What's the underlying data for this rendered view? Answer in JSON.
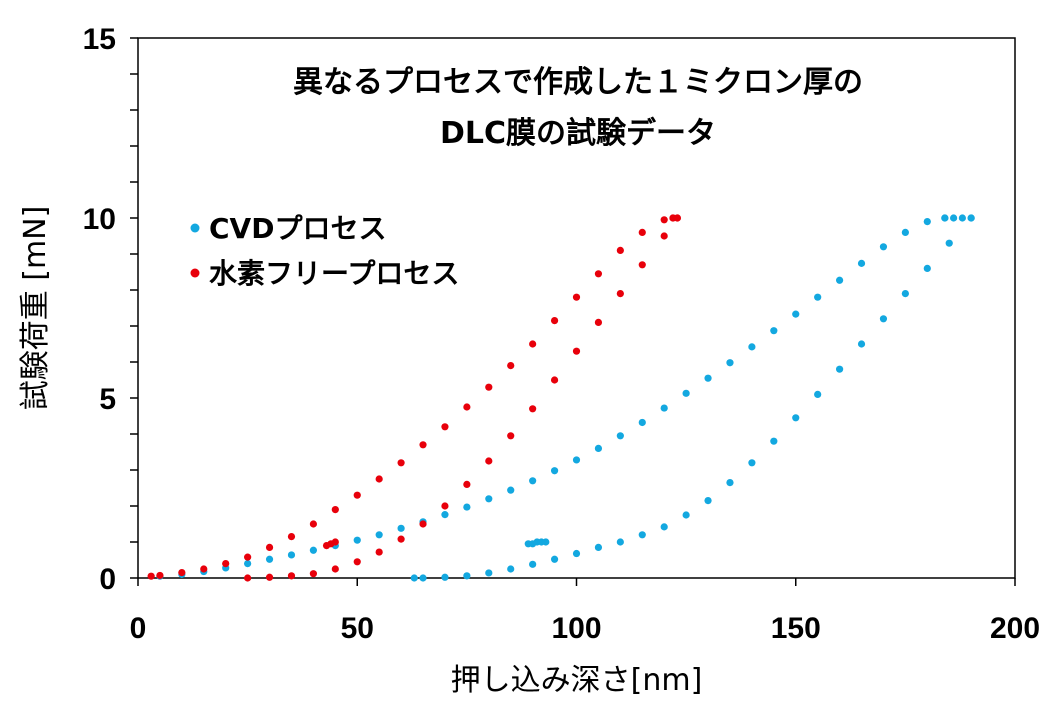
{
  "chart_data": {
    "type": "scatter",
    "title_lines": [
      "異なるプロセスで作成した１ミクロン厚の",
      "DLC膜の試験データ"
    ],
    "xlabel": "押し込み深さ[nm]",
    "ylabel": "試験荷重 [mN]",
    "xlim": [
      0,
      200
    ],
    "ylim": [
      0,
      15
    ],
    "x_ticks": [
      0,
      50,
      100,
      150,
      200
    ],
    "x_tick_labels": [
      "0",
      "50",
      "100",
      "150",
      "200"
    ],
    "y_ticks": [
      0,
      5,
      10,
      15
    ],
    "y_tick_labels": [
      "0",
      "5",
      "10",
      "15"
    ],
    "y_minor_step": 1,
    "grid": false,
    "legend_position": "upper-left",
    "series": [
      {
        "name": "CVDプロセス",
        "color": "#13A8E0",
        "loading": [
          [
            5,
            0.05
          ],
          [
            10,
            0.1
          ],
          [
            15,
            0.18
          ],
          [
            20,
            0.28
          ],
          [
            25,
            0.4
          ],
          [
            30,
            0.52
          ],
          [
            35,
            0.64
          ],
          [
            40,
            0.77
          ],
          [
            45,
            0.9
          ],
          [
            50,
            1.05
          ],
          [
            55,
            1.2
          ],
          [
            60,
            1.38
          ],
          [
            65,
            1.56
          ],
          [
            70,
            1.76
          ],
          [
            75,
            1.97
          ],
          [
            80,
            2.2
          ],
          [
            85,
            2.44
          ],
          [
            90,
            2.7
          ],
          [
            95,
            2.98
          ],
          [
            100,
            3.28
          ],
          [
            105,
            3.6
          ],
          [
            110,
            3.95
          ],
          [
            115,
            4.32
          ],
          [
            120,
            4.72
          ],
          [
            125,
            5.13
          ],
          [
            130,
            5.55
          ],
          [
            135,
            5.98
          ],
          [
            140,
            6.42
          ],
          [
            145,
            6.87
          ],
          [
            150,
            7.33
          ],
          [
            155,
            7.8
          ],
          [
            160,
            8.27
          ],
          [
            165,
            8.74
          ],
          [
            170,
            9.2
          ],
          [
            175,
            9.6
          ],
          [
            180,
            9.9
          ],
          [
            184,
            10.0
          ]
        ],
        "hold": [
          [
            184,
            10.0
          ],
          [
            186,
            10.0
          ],
          [
            188,
            10.0
          ],
          [
            190,
            10.0
          ]
        ],
        "unloading": [
          [
            190,
            10.0
          ],
          [
            185,
            9.3
          ],
          [
            180,
            8.6
          ],
          [
            175,
            7.9
          ],
          [
            170,
            7.2
          ],
          [
            165,
            6.5
          ],
          [
            160,
            5.8
          ],
          [
            155,
            5.1
          ],
          [
            150,
            4.45
          ],
          [
            145,
            3.8
          ],
          [
            140,
            3.2
          ],
          [
            135,
            2.65
          ],
          [
            130,
            2.15
          ],
          [
            125,
            1.75
          ],
          [
            120,
            1.42
          ],
          [
            115,
            1.2
          ],
          [
            110,
            1.0
          ],
          [
            105,
            0.85
          ],
          [
            100,
            0.68
          ],
          [
            95,
            0.52
          ],
          [
            90,
            0.38
          ],
          [
            85,
            0.25
          ],
          [
            80,
            0.14
          ],
          [
            75,
            0.06
          ],
          [
            70,
            0.02
          ],
          [
            65,
            0.0
          ],
          [
            63,
            0.0
          ]
        ],
        "extra_points": [
          [
            89,
            0.95
          ],
          [
            90,
            0.95
          ],
          [
            91,
            1.0
          ],
          [
            92,
            1.0
          ],
          [
            93,
            1.0
          ]
        ]
      },
      {
        "name": "水素フリープロセス",
        "color": "#E8000B",
        "loading": [
          [
            3,
            0.05
          ],
          [
            5,
            0.07
          ],
          [
            10,
            0.15
          ],
          [
            15,
            0.25
          ],
          [
            20,
            0.4
          ],
          [
            25,
            0.58
          ],
          [
            30,
            0.85
          ],
          [
            35,
            1.15
          ],
          [
            40,
            1.5
          ],
          [
            45,
            1.9
          ],
          [
            50,
            2.3
          ],
          [
            55,
            2.75
          ],
          [
            60,
            3.2
          ],
          [
            65,
            3.7
          ],
          [
            70,
            4.2
          ],
          [
            75,
            4.75
          ],
          [
            80,
            5.3
          ],
          [
            85,
            5.9
          ],
          [
            90,
            6.5
          ],
          [
            95,
            7.15
          ],
          [
            100,
            7.8
          ],
          [
            105,
            8.45
          ],
          [
            110,
            9.1
          ],
          [
            115,
            9.6
          ],
          [
            120,
            9.95
          ],
          [
            122,
            10.0
          ]
        ],
        "hold": [
          [
            122,
            10.0
          ],
          [
            123,
            10.0
          ]
        ],
        "unloading": [
          [
            123,
            10.0
          ],
          [
            120,
            9.5
          ],
          [
            115,
            8.7
          ],
          [
            110,
            7.9
          ],
          [
            105,
            7.1
          ],
          [
            100,
            6.3
          ],
          [
            95,
            5.5
          ],
          [
            90,
            4.7
          ],
          [
            85,
            3.95
          ],
          [
            80,
            3.25
          ],
          [
            75,
            2.6
          ],
          [
            70,
            2.0
          ],
          [
            65,
            1.5
          ],
          [
            60,
            1.08
          ],
          [
            55,
            0.72
          ],
          [
            50,
            0.45
          ],
          [
            45,
            0.25
          ],
          [
            40,
            0.12
          ],
          [
            35,
            0.06
          ],
          [
            30,
            0.02
          ],
          [
            25,
            0.0
          ]
        ],
        "extra_points": [
          [
            43,
            0.9
          ],
          [
            44,
            0.95
          ],
          [
            45,
            1.0
          ]
        ]
      }
    ]
  }
}
